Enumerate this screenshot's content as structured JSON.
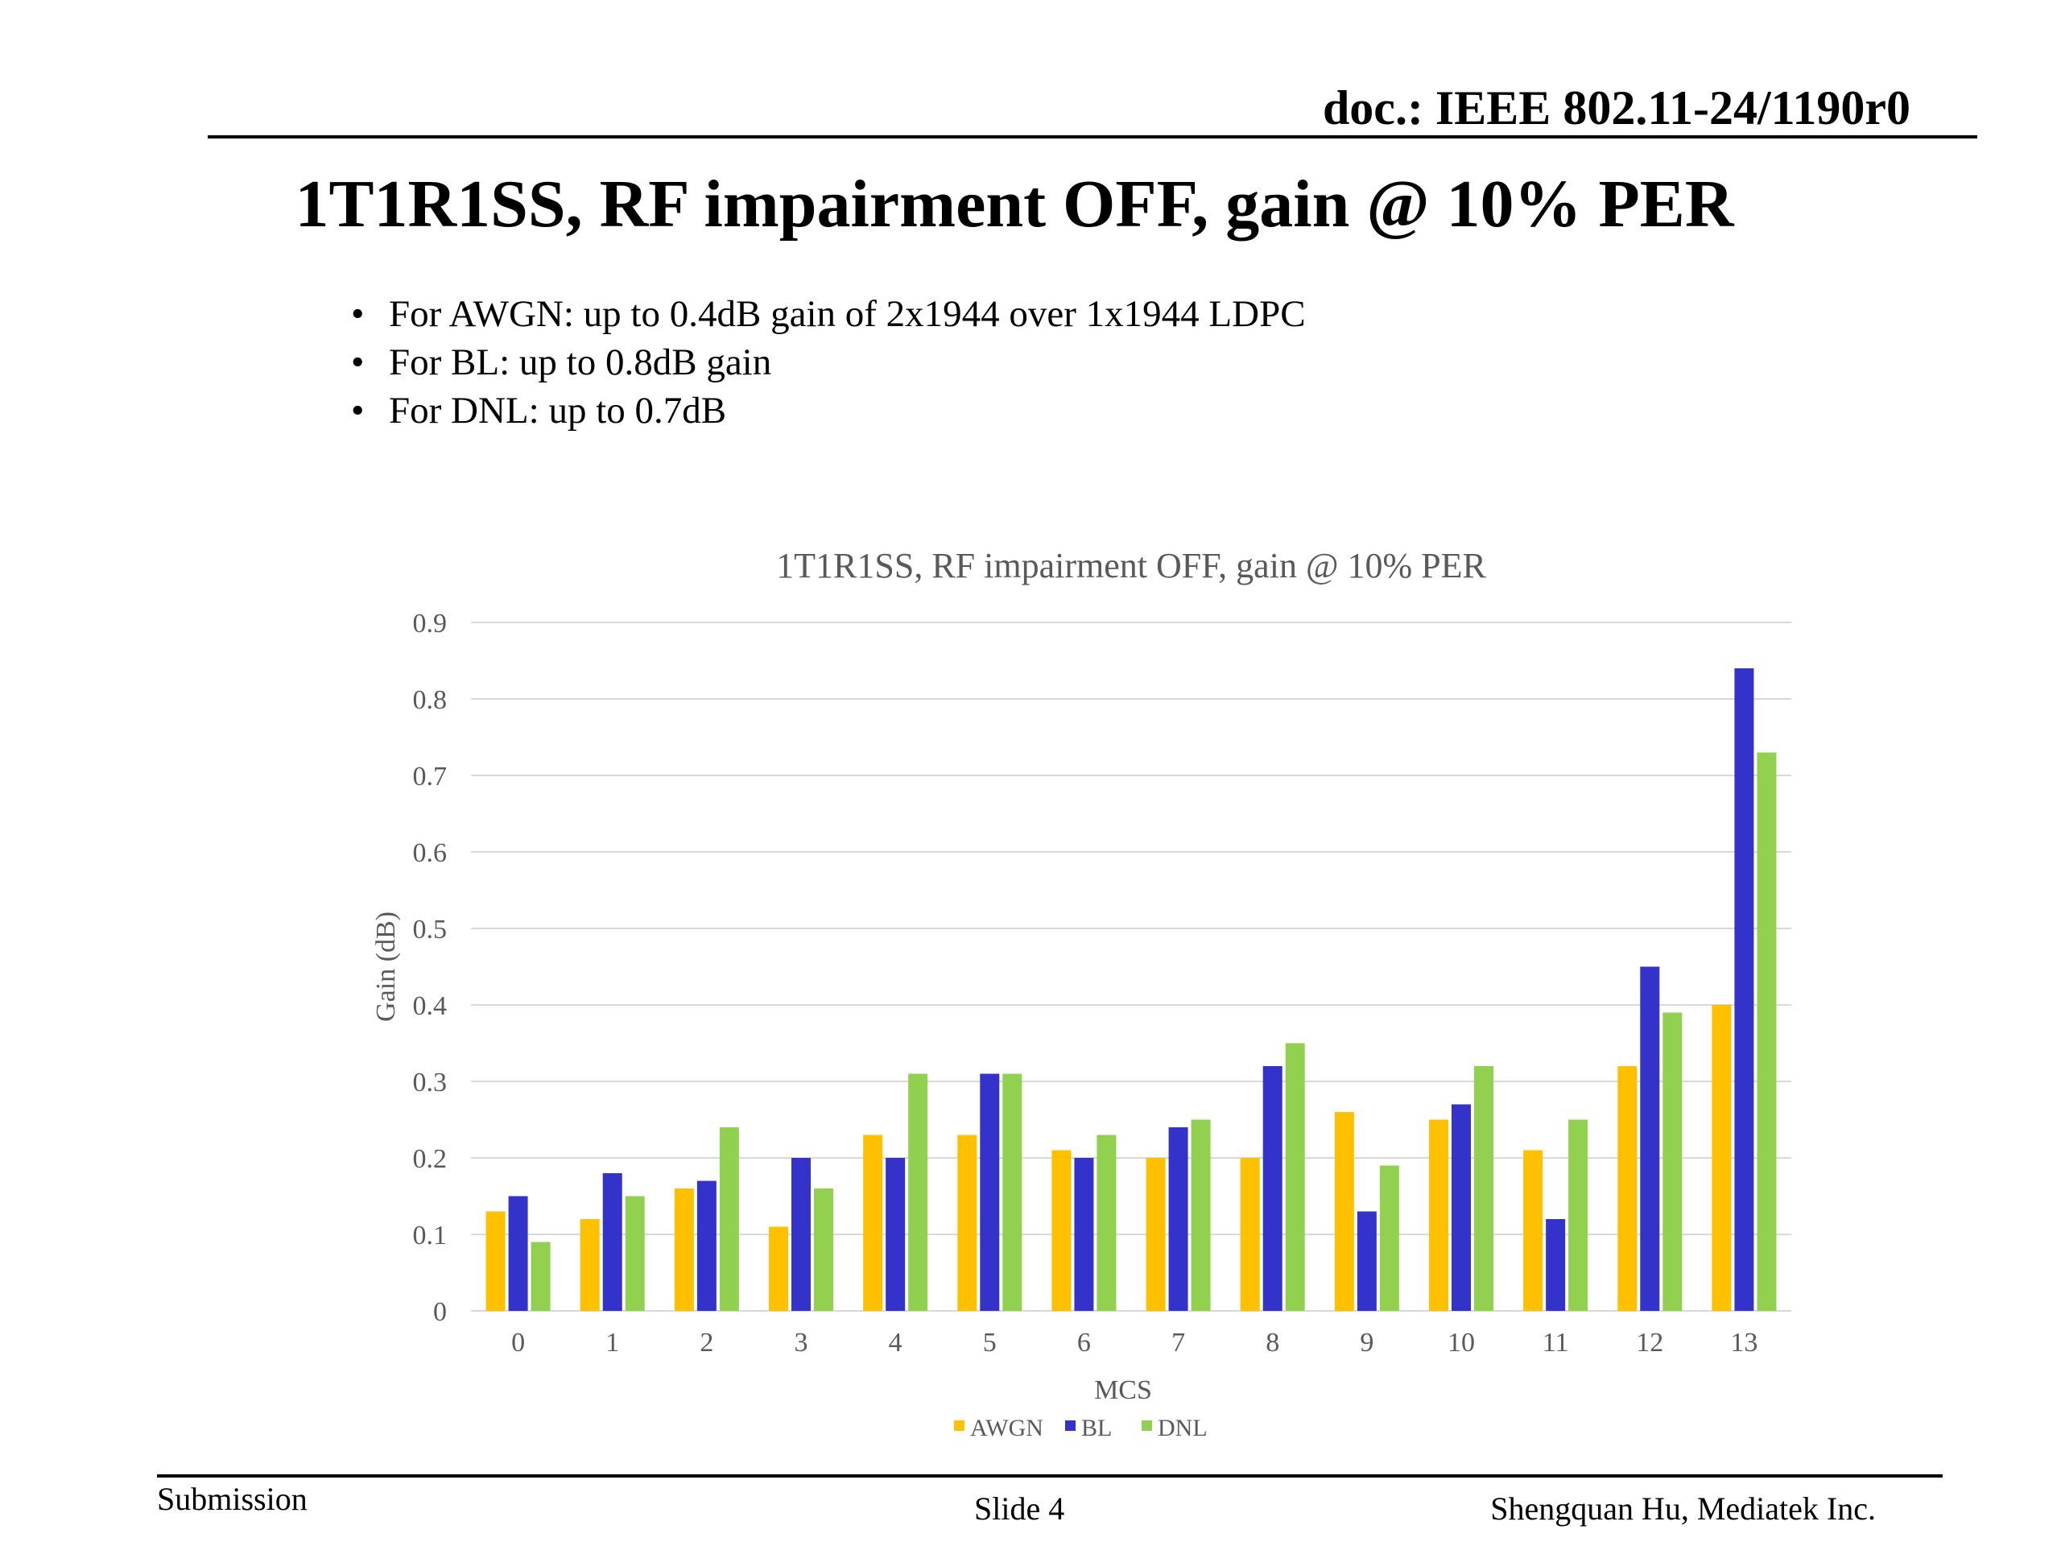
{
  "header": {
    "doc_id": "doc.: IEEE 802.11-24/1190r0"
  },
  "slide": {
    "title": "1T1R1SS, RF impairment OFF, gain @ 10% PER",
    "bullets": [
      "For AWGN: up to 0.4dB gain of 2x1944 over 1x1944 LDPC",
      "For BL: up to 0.8dB gain",
      "For DNL: up to 0.7dB"
    ]
  },
  "footer": {
    "left": "Submission",
    "center": "Slide 4",
    "right": "Shengquan Hu, Mediatek Inc."
  },
  "chart_data": {
    "type": "bar",
    "title": "1T1R1SS, RF impairment OFF, gain @ 10% PER",
    "xlabel": "MCS",
    "ylabel": "Gain (dB)",
    "ylim": [
      0,
      0.9
    ],
    "yticks": [
      "0",
      "0.1",
      "0.2",
      "0.3",
      "0.4",
      "0.5",
      "0.6",
      "0.7",
      "0.8",
      "0.9"
    ],
    "categories": [
      "0",
      "1",
      "2",
      "3",
      "4",
      "5",
      "6",
      "7",
      "8",
      "9",
      "10",
      "11",
      "12",
      "13"
    ],
    "series": [
      {
        "name": "AWGN",
        "color": "#FFC000",
        "values": [
          0.13,
          0.12,
          0.16,
          0.11,
          0.23,
          0.23,
          0.21,
          0.2,
          0.2,
          0.26,
          0.25,
          0.21,
          0.32,
          0.4
        ]
      },
      {
        "name": "BL",
        "color": "#3333CC",
        "values": [
          0.15,
          0.18,
          0.17,
          0.2,
          0.2,
          0.31,
          0.2,
          0.24,
          0.32,
          0.13,
          0.27,
          0.12,
          0.45,
          0.84
        ]
      },
      {
        "name": "DNL",
        "color": "#92D050",
        "values": [
          0.09,
          0.15,
          0.24,
          0.16,
          0.31,
          0.31,
          0.23,
          0.25,
          0.35,
          0.19,
          0.32,
          0.25,
          0.39,
          0.73
        ]
      }
    ],
    "grid": true,
    "legend": "bottom"
  }
}
